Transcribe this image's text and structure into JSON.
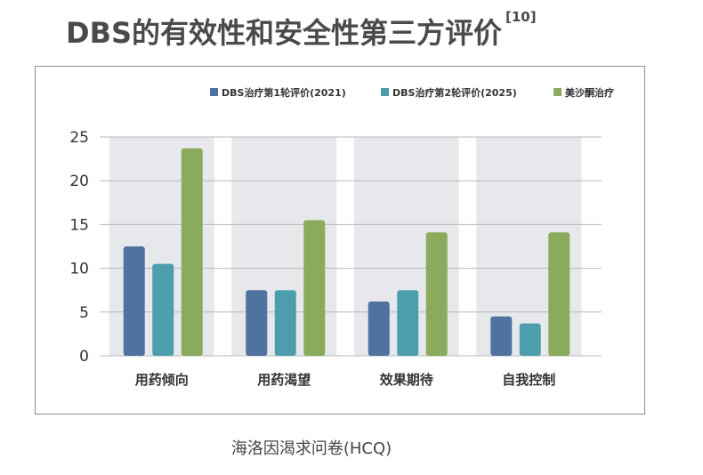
{
  "title": "DBS的有效性和安全性第三方评价",
  "title_ref": "[10]",
  "caption": "海洛因渴求问卷(HCQ)",
  "colors": {
    "s1": "#4f72a0",
    "s2": "#4d9eac",
    "s3": "#8aaa5c",
    "band": "#e6e8ec",
    "grid": "#b8b8b8"
  },
  "chart_data": {
    "type": "bar",
    "categories": [
      "用药倾向",
      "用药渴望",
      "效果期待",
      "自我控制"
    ],
    "series": [
      {
        "name": "DBS治疗第1轮评价(2021)",
        "values": [
          12.5,
          7.5,
          6.2,
          4.5
        ]
      },
      {
        "name": "DBS治疗第2轮评价(2025)",
        "values": [
          10.5,
          7.5,
          7.5,
          3.7
        ]
      },
      {
        "name": "美沙酮治疗",
        "values": [
          23.7,
          15.5,
          14.1,
          14.1
        ]
      }
    ],
    "yticks": [
      "0",
      "5",
      "10",
      "15",
      "20",
      "25"
    ],
    "ylim": [
      0,
      25
    ],
    "grid": true,
    "legend": "top-right"
  }
}
